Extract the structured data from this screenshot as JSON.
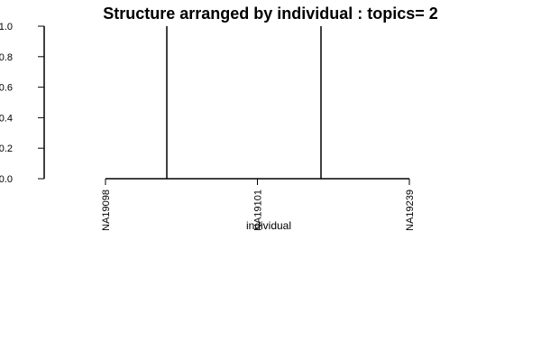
{
  "chart_data": {
    "type": "bar",
    "title": "Structure arranged by individual : topics= 2",
    "xlabel": "individual",
    "ylabel": "",
    "ylim": [
      0,
      1
    ],
    "yticks": [
      0.0,
      0.2,
      0.4,
      0.6,
      0.8,
      1.0
    ],
    "ytick_labels": [
      "0.0",
      "0.2",
      "0.4",
      "0.6",
      "0.8",
      "1.0"
    ],
    "x_tick_labels": [
      "NA19098",
      "NA19101",
      "NA19239"
    ],
    "group_separators": 2,
    "grid": false,
    "legend": "none",
    "stroke_color": "#000000",
    "background_color": "#ffffff"
  }
}
